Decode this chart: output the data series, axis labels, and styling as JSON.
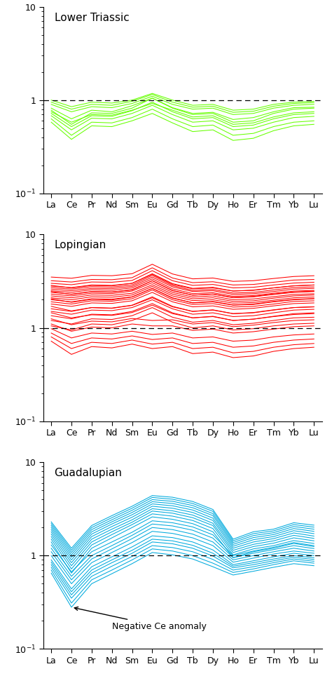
{
  "elements": [
    "La",
    "Ce",
    "Pr",
    "Nd",
    "Sm",
    "Eu",
    "Gd",
    "Tb",
    "Dy",
    "Ho",
    "Er",
    "Tm",
    "Yb",
    "Lu"
  ],
  "panels": [
    {
      "label": "Lower Triassic",
      "color": "#66FF00",
      "series": [
        [
          0.78,
          0.55,
          0.73,
          0.72,
          0.82,
          1.05,
          0.82,
          0.7,
          0.72,
          0.58,
          0.6,
          0.72,
          0.8,
          0.82
        ],
        [
          0.82,
          0.63,
          0.78,
          0.75,
          0.87,
          1.05,
          0.83,
          0.72,
          0.74,
          0.62,
          0.65,
          0.75,
          0.83,
          0.84
        ],
        [
          0.72,
          0.52,
          0.68,
          0.67,
          0.77,
          0.95,
          0.75,
          0.63,
          0.65,
          0.52,
          0.54,
          0.63,
          0.7,
          0.72
        ],
        [
          0.68,
          0.48,
          0.64,
          0.63,
          0.72,
          0.88,
          0.7,
          0.58,
          0.6,
          0.48,
          0.5,
          0.58,
          0.65,
          0.67
        ],
        [
          0.63,
          0.42,
          0.58,
          0.57,
          0.65,
          0.8,
          0.63,
          0.52,
          0.54,
          0.42,
          0.44,
          0.52,
          0.58,
          0.6
        ],
        [
          0.9,
          0.75,
          0.85,
          0.83,
          0.92,
          1.1,
          0.9,
          0.8,
          0.82,
          0.7,
          0.72,
          0.82,
          0.88,
          0.9
        ],
        [
          0.95,
          0.8,
          0.9,
          0.88,
          0.97,
          1.15,
          0.95,
          0.84,
          0.86,
          0.74,
          0.76,
          0.86,
          0.92,
          0.94
        ],
        [
          1.0,
          0.85,
          0.95,
          0.93,
          1.0,
          1.18,
          1.0,
          0.88,
          0.9,
          0.78,
          0.8,
          0.9,
          0.95,
          0.97
        ],
        [
          0.75,
          0.58,
          0.7,
          0.69,
          0.78,
          0.92,
          0.78,
          0.66,
          0.68,
          0.55,
          0.57,
          0.66,
          0.73,
          0.75
        ],
        [
          0.58,
          0.38,
          0.53,
          0.52,
          0.6,
          0.72,
          0.57,
          0.46,
          0.48,
          0.37,
          0.39,
          0.47,
          0.53,
          0.55
        ]
      ]
    },
    {
      "label": "Lopingian",
      "color": "#FF0000",
      "series": [
        [
          1.05,
          0.95,
          1.1,
          1.08,
          1.2,
          1.45,
          1.15,
          1.0,
          1.05,
          0.95,
          0.98,
          1.05,
          1.1,
          1.12
        ],
        [
          1.5,
          1.4,
          1.55,
          1.53,
          1.65,
          2.0,
          1.6,
          1.4,
          1.45,
          1.32,
          1.35,
          1.45,
          1.55,
          1.58
        ],
        [
          1.8,
          1.7,
          1.85,
          1.83,
          1.95,
          2.4,
          1.9,
          1.68,
          1.72,
          1.58,
          1.62,
          1.72,
          1.82,
          1.85
        ],
        [
          2.0,
          1.9,
          2.05,
          2.03,
          2.15,
          2.65,
          2.1,
          1.85,
          1.9,
          1.75,
          1.78,
          1.9,
          2.0,
          2.05
        ],
        [
          2.2,
          2.1,
          2.25,
          2.23,
          2.35,
          2.9,
          2.3,
          2.05,
          2.1,
          1.92,
          1.95,
          2.08,
          2.2,
          2.25
        ],
        [
          2.4,
          2.3,
          2.45,
          2.43,
          2.55,
          3.2,
          2.52,
          2.24,
          2.3,
          2.1,
          2.15,
          2.28,
          2.4,
          2.45
        ],
        [
          2.6,
          2.5,
          2.65,
          2.63,
          2.78,
          3.5,
          2.75,
          2.45,
          2.5,
          2.28,
          2.32,
          2.45,
          2.6,
          2.65
        ],
        [
          2.8,
          2.7,
          2.88,
          2.85,
          3.0,
          3.8,
          2.98,
          2.65,
          2.72,
          2.48,
          2.52,
          2.68,
          2.82,
          2.88
        ],
        [
          3.0,
          2.9,
          3.1,
          3.08,
          3.22,
          4.1,
          3.2,
          2.85,
          2.92,
          2.68,
          2.72,
          2.88,
          3.02,
          3.08
        ],
        [
          3.2,
          3.1,
          3.3,
          3.28,
          3.45,
          4.4,
          3.42,
          3.05,
          3.12,
          2.88,
          2.92,
          3.08,
          3.25,
          3.3
        ],
        [
          1.2,
          1.1,
          1.25,
          1.23,
          1.35,
          1.65,
          1.3,
          1.15,
          1.2,
          1.08,
          1.12,
          1.2,
          1.28,
          1.3
        ],
        [
          1.35,
          1.25,
          1.4,
          1.38,
          1.5,
          1.82,
          1.45,
          1.28,
          1.33,
          1.2,
          1.24,
          1.33,
          1.42,
          1.45
        ],
        [
          1.6,
          1.5,
          1.65,
          1.63,
          1.75,
          2.15,
          1.7,
          1.5,
          1.55,
          1.42,
          1.45,
          1.55,
          1.65,
          1.68
        ],
        [
          1.9,
          1.8,
          1.95,
          1.93,
          2.05,
          2.55,
          2.0,
          1.78,
          1.82,
          1.67,
          1.7,
          1.8,
          1.92,
          1.95
        ],
        [
          2.1,
          2.0,
          2.15,
          2.13,
          2.25,
          2.78,
          2.2,
          1.96,
          2.0,
          1.84,
          1.87,
          1.98,
          2.1,
          2.14
        ],
        [
          2.3,
          2.2,
          2.35,
          2.33,
          2.48,
          3.05,
          2.4,
          2.14,
          2.2,
          2.0,
          2.04,
          2.16,
          2.28,
          2.32
        ],
        [
          2.5,
          2.4,
          2.56,
          2.53,
          2.68,
          3.35,
          2.62,
          2.33,
          2.38,
          2.18,
          2.22,
          2.35,
          2.48,
          2.52
        ],
        [
          2.7,
          2.6,
          2.76,
          2.73,
          2.88,
          3.65,
          2.84,
          2.52,
          2.58,
          2.36,
          2.4,
          2.55,
          2.7,
          2.75
        ],
        [
          0.98,
          0.78,
          0.88,
          0.86,
          0.92,
          0.85,
          0.88,
          0.78,
          0.8,
          0.72,
          0.74,
          0.8,
          0.84,
          0.86
        ],
        [
          0.88,
          0.68,
          0.78,
          0.76,
          0.82,
          0.75,
          0.78,
          0.68,
          0.7,
          0.62,
          0.64,
          0.7,
          0.74,
          0.76
        ],
        [
          0.8,
          0.6,
          0.7,
          0.68,
          0.74,
          0.67,
          0.7,
          0.6,
          0.62,
          0.54,
          0.56,
          0.62,
          0.66,
          0.68
        ],
        [
          0.72,
          0.52,
          0.63,
          0.61,
          0.67,
          0.6,
          0.63,
          0.53,
          0.55,
          0.48,
          0.5,
          0.56,
          0.6,
          0.62
        ],
        [
          3.5,
          3.4,
          3.65,
          3.62,
          3.8,
          4.8,
          3.78,
          3.35,
          3.42,
          3.15,
          3.2,
          3.38,
          3.55,
          3.62
        ],
        [
          1.1,
          0.92,
          1.02,
          1.0,
          1.1,
          1.05,
          1.05,
          0.94,
          0.97,
          0.88,
          0.91,
          0.97,
          1.03,
          1.05
        ],
        [
          1.25,
          1.08,
          1.18,
          1.16,
          1.26,
          1.2,
          1.22,
          1.1,
          1.14,
          1.03,
          1.07,
          1.14,
          1.2,
          1.22
        ],
        [
          1.45,
          1.28,
          1.38,
          1.36,
          1.46,
          1.75,
          1.42,
          1.28,
          1.32,
          1.2,
          1.24,
          1.32,
          1.39,
          1.42
        ],
        [
          1.7,
          1.52,
          1.65,
          1.62,
          1.74,
          2.1,
          1.68,
          1.5,
          1.56,
          1.42,
          1.46,
          1.56,
          1.65,
          1.68
        ],
        [
          2.05,
          1.88,
          2.02,
          1.99,
          2.14,
          2.65,
          2.08,
          1.86,
          1.92,
          1.76,
          1.8,
          1.92,
          2.02,
          2.06
        ],
        [
          2.45,
          2.28,
          2.44,
          2.41,
          2.57,
          3.2,
          2.5,
          2.24,
          2.3,
          2.12,
          2.17,
          2.3,
          2.42,
          2.47
        ],
        [
          2.85,
          2.68,
          2.85,
          2.82,
          3.0,
          3.75,
          2.92,
          2.62,
          2.68,
          2.48,
          2.54,
          2.68,
          2.82,
          2.88
        ]
      ]
    },
    {
      "label": "Guadalupian",
      "color": "#00AADD",
      "series": [
        [
          1.4,
          0.65,
          1.2,
          1.55,
          2.0,
          2.6,
          2.45,
          2.2,
          1.8,
          0.95,
          1.1,
          1.2,
          1.35,
          1.25
        ],
        [
          1.5,
          0.72,
          1.3,
          1.68,
          2.15,
          2.8,
          2.65,
          2.38,
          1.95,
          1.02,
          1.18,
          1.28,
          1.45,
          1.35
        ],
        [
          1.6,
          0.78,
          1.4,
          1.8,
          2.28,
          3.0,
          2.85,
          2.55,
          2.1,
          1.08,
          1.25,
          1.36,
          1.55,
          1.44
        ],
        [
          1.7,
          0.84,
          1.5,
          1.92,
          2.42,
          3.18,
          3.02,
          2.72,
          2.22,
          1.14,
          1.32,
          1.44,
          1.65,
          1.53
        ],
        [
          1.8,
          0.9,
          1.6,
          2.05,
          2.58,
          3.38,
          3.22,
          2.9,
          2.38,
          1.2,
          1.4,
          1.52,
          1.75,
          1.62
        ],
        [
          1.9,
          0.96,
          1.7,
          2.18,
          2.74,
          3.58,
          3.42,
          3.08,
          2.52,
          1.26,
          1.48,
          1.6,
          1.85,
          1.72
        ],
        [
          2.0,
          1.02,
          1.8,
          2.3,
          2.9,
          3.78,
          3.62,
          3.26,
          2.68,
          1.32,
          1.56,
          1.68,
          1.95,
          1.82
        ],
        [
          2.1,
          1.08,
          1.9,
          2.42,
          3.06,
          3.98,
          3.82,
          3.44,
          2.82,
          1.38,
          1.64,
          1.76,
          2.05,
          1.92
        ],
        [
          2.2,
          1.14,
          2.0,
          2.55,
          3.22,
          4.2,
          4.02,
          3.62,
          2.98,
          1.44,
          1.72,
          1.84,
          2.15,
          2.02
        ],
        [
          2.3,
          1.2,
          2.1,
          2.68,
          3.38,
          4.4,
          4.22,
          3.8,
          3.12,
          1.5,
          1.8,
          1.92,
          2.25,
          2.12
        ],
        [
          1.1,
          0.55,
          0.92,
          1.18,
          1.52,
          2.0,
          1.9,
          1.7,
          1.4,
          0.9,
          1.0,
          1.1,
          1.2,
          1.12
        ],
        [
          1.2,
          0.6,
          1.0,
          1.28,
          1.65,
          2.18,
          2.08,
          1.87,
          1.54,
          0.95,
          1.06,
          1.16,
          1.28,
          1.19
        ],
        [
          1.3,
          0.67,
          1.1,
          1.4,
          1.78,
          2.36,
          2.25,
          2.03,
          1.67,
          1.0,
          1.12,
          1.23,
          1.38,
          1.28
        ],
        [
          1.0,
          0.5,
          0.84,
          1.08,
          1.38,
          1.82,
          1.73,
          1.55,
          1.28,
          0.85,
          0.94,
          1.04,
          1.12,
          1.06
        ],
        [
          0.9,
          0.44,
          0.76,
          0.97,
          1.24,
          1.63,
          1.56,
          1.4,
          1.15,
          0.8,
          0.88,
          0.97,
          1.06,
          1.0
        ],
        [
          0.85,
          0.41,
          0.7,
          0.9,
          1.14,
          1.5,
          1.44,
          1.29,
          1.06,
          0.77,
          0.84,
          0.92,
          1.0,
          0.95
        ],
        [
          0.8,
          0.38,
          0.65,
          0.84,
          1.06,
          1.4,
          1.34,
          1.2,
          0.99,
          0.74,
          0.8,
          0.88,
          0.96,
          0.91
        ],
        [
          0.75,
          0.35,
          0.6,
          0.77,
          0.98,
          1.28,
          1.22,
          1.1,
          0.91,
          0.7,
          0.76,
          0.84,
          0.92,
          0.87
        ],
        [
          0.7,
          0.31,
          0.55,
          0.7,
          0.9,
          1.18,
          1.12,
          1.0,
          0.83,
          0.66,
          0.72,
          0.8,
          0.88,
          0.83
        ],
        [
          0.65,
          0.28,
          0.5,
          0.64,
          0.82,
          1.08,
          1.02,
          0.92,
          0.76,
          0.62,
          0.68,
          0.75,
          0.82,
          0.78
        ]
      ]
    }
  ],
  "ylim": [
    0.1,
    10
  ],
  "dashed_line_y": 1.0,
  "annotation_text": "Negative Ce anomaly",
  "background_color": "#ffffff"
}
